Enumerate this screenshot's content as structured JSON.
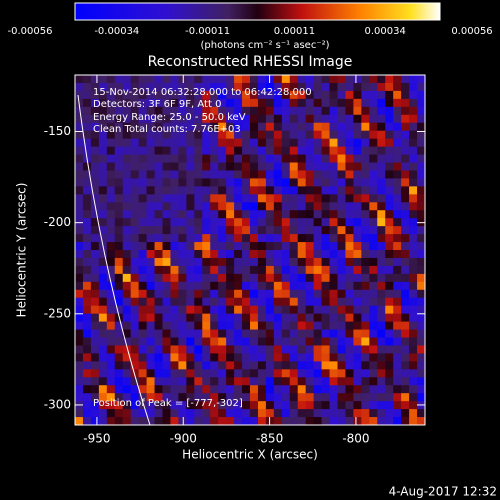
{
  "chart_data": {
    "type": "image",
    "title": "Reconstructed RHESSI Image",
    "colorbar": {
      "lim": [
        -0.00056,
        0.00056
      ],
      "ticks": [
        -0.00056,
        -0.00034,
        -0.00011,
        0.00011,
        0.00034,
        0.00056
      ],
      "label": "(photons cm⁻² s⁻¹ asec⁻²)"
    },
    "annotations": [
      "15-Nov-2014 06:32:28.000 to 06:42:28.000",
      "Detectors: 3F 6F 9F, Att 0",
      "Energy Range: 25.0 - 50.0 keV",
      "Clean    Total counts: 7.76E+03"
    ],
    "peak_label": "Position of Peak = [-777,-302]",
    "xlabel": "Heliocentric X (arcsec)",
    "ylabel": "Heliocentric Y (arcsec)",
    "xlim": [
      -962.7,
      -760
    ],
    "xticks": [
      -950,
      -900,
      -850,
      -800
    ],
    "ylim": [
      -311,
      -119
    ],
    "yticks": [
      -150,
      -200,
      -250,
      -300
    ],
    "timestamp": "4-Aug-2017 12:32"
  }
}
